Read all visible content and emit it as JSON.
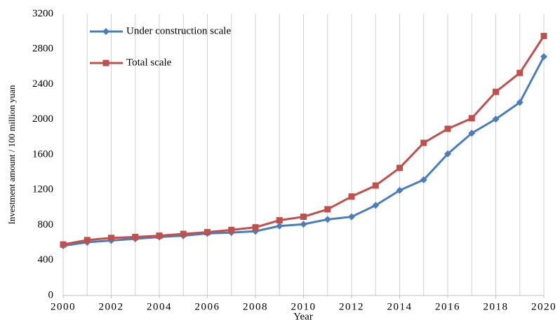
{
  "chart_data": {
    "type": "line",
    "x": [
      2000,
      2001,
      2002,
      2003,
      2004,
      2005,
      2006,
      2007,
      2008,
      2009,
      2010,
      2011,
      2012,
      2013,
      2014,
      2015,
      2016,
      2017,
      2018,
      2019,
      2020
    ],
    "series": [
      {
        "name": "Under construction scale",
        "color": "#4a7ebb",
        "marker": "diamond",
        "values": [
          565,
          605,
          625,
          645,
          665,
          680,
          705,
          715,
          730,
          790,
          810,
          865,
          895,
          1025,
          1195,
          1315,
          1610,
          1845,
          2005,
          2195,
          2715
        ]
      },
      {
        "name": "Total scale",
        "color": "#c0504d",
        "marker": "square",
        "values": [
          580,
          630,
          655,
          665,
          680,
          700,
          720,
          745,
          775,
          855,
          895,
          980,
          1125,
          1250,
          1450,
          1735,
          1895,
          2015,
          2315,
          2530,
          2950
        ]
      }
    ],
    "xlabel": "Year",
    "ylabel": "Investment amount / 100 million yuan",
    "xlim": [
      2000,
      2020
    ],
    "xticks": [
      2000,
      2002,
      2004,
      2006,
      2008,
      2010,
      2012,
      2014,
      2016,
      2018,
      2020
    ],
    "ylim": [
      0,
      3200
    ],
    "yticks": [
      0,
      400,
      800,
      1200,
      1600,
      2000,
      2400,
      2800,
      3200
    ],
    "grid": "x",
    "legend": "upper left"
  }
}
